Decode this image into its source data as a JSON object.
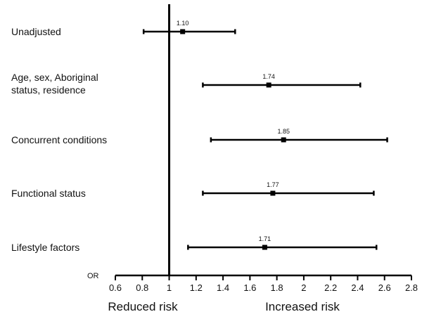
{
  "chart_data": {
    "type": "forest",
    "axis_label": "OR",
    "reference_value": 1,
    "xlim": [
      0.6,
      2.8
    ],
    "ticks": [
      "0.6",
      "0.8",
      "1",
      "1.2",
      "1.4",
      "1.6",
      "1.8",
      "2",
      "2.2",
      "2.4",
      "2.6",
      "2.8"
    ],
    "rows": [
      {
        "label_lines": [
          "Unadjusted"
        ],
        "estimate": 1.1,
        "lower": 0.81,
        "upper": 1.49,
        "value_label": "1.10"
      },
      {
        "label_lines": [
          "Age, sex, Aboriginal",
          "status, residence"
        ],
        "estimate": 1.74,
        "lower": 1.25,
        "upper": 2.42,
        "value_label": "1.74"
      },
      {
        "label_lines": [
          "Concurrent conditions"
        ],
        "estimate": 1.85,
        "lower": 1.31,
        "upper": 2.62,
        "value_label": "1.85"
      },
      {
        "label_lines": [
          "Functional status"
        ],
        "estimate": 1.77,
        "lower": 1.25,
        "upper": 2.52,
        "value_label": "1.77"
      },
      {
        "label_lines": [
          "Lifestyle factors"
        ],
        "estimate": 1.71,
        "lower": 1.14,
        "upper": 2.54,
        "value_label": "1.71"
      }
    ],
    "direction_labels": {
      "left": "Reduced risk",
      "right": "Increased risk"
    },
    "colors": {
      "ink": "#000000"
    }
  }
}
